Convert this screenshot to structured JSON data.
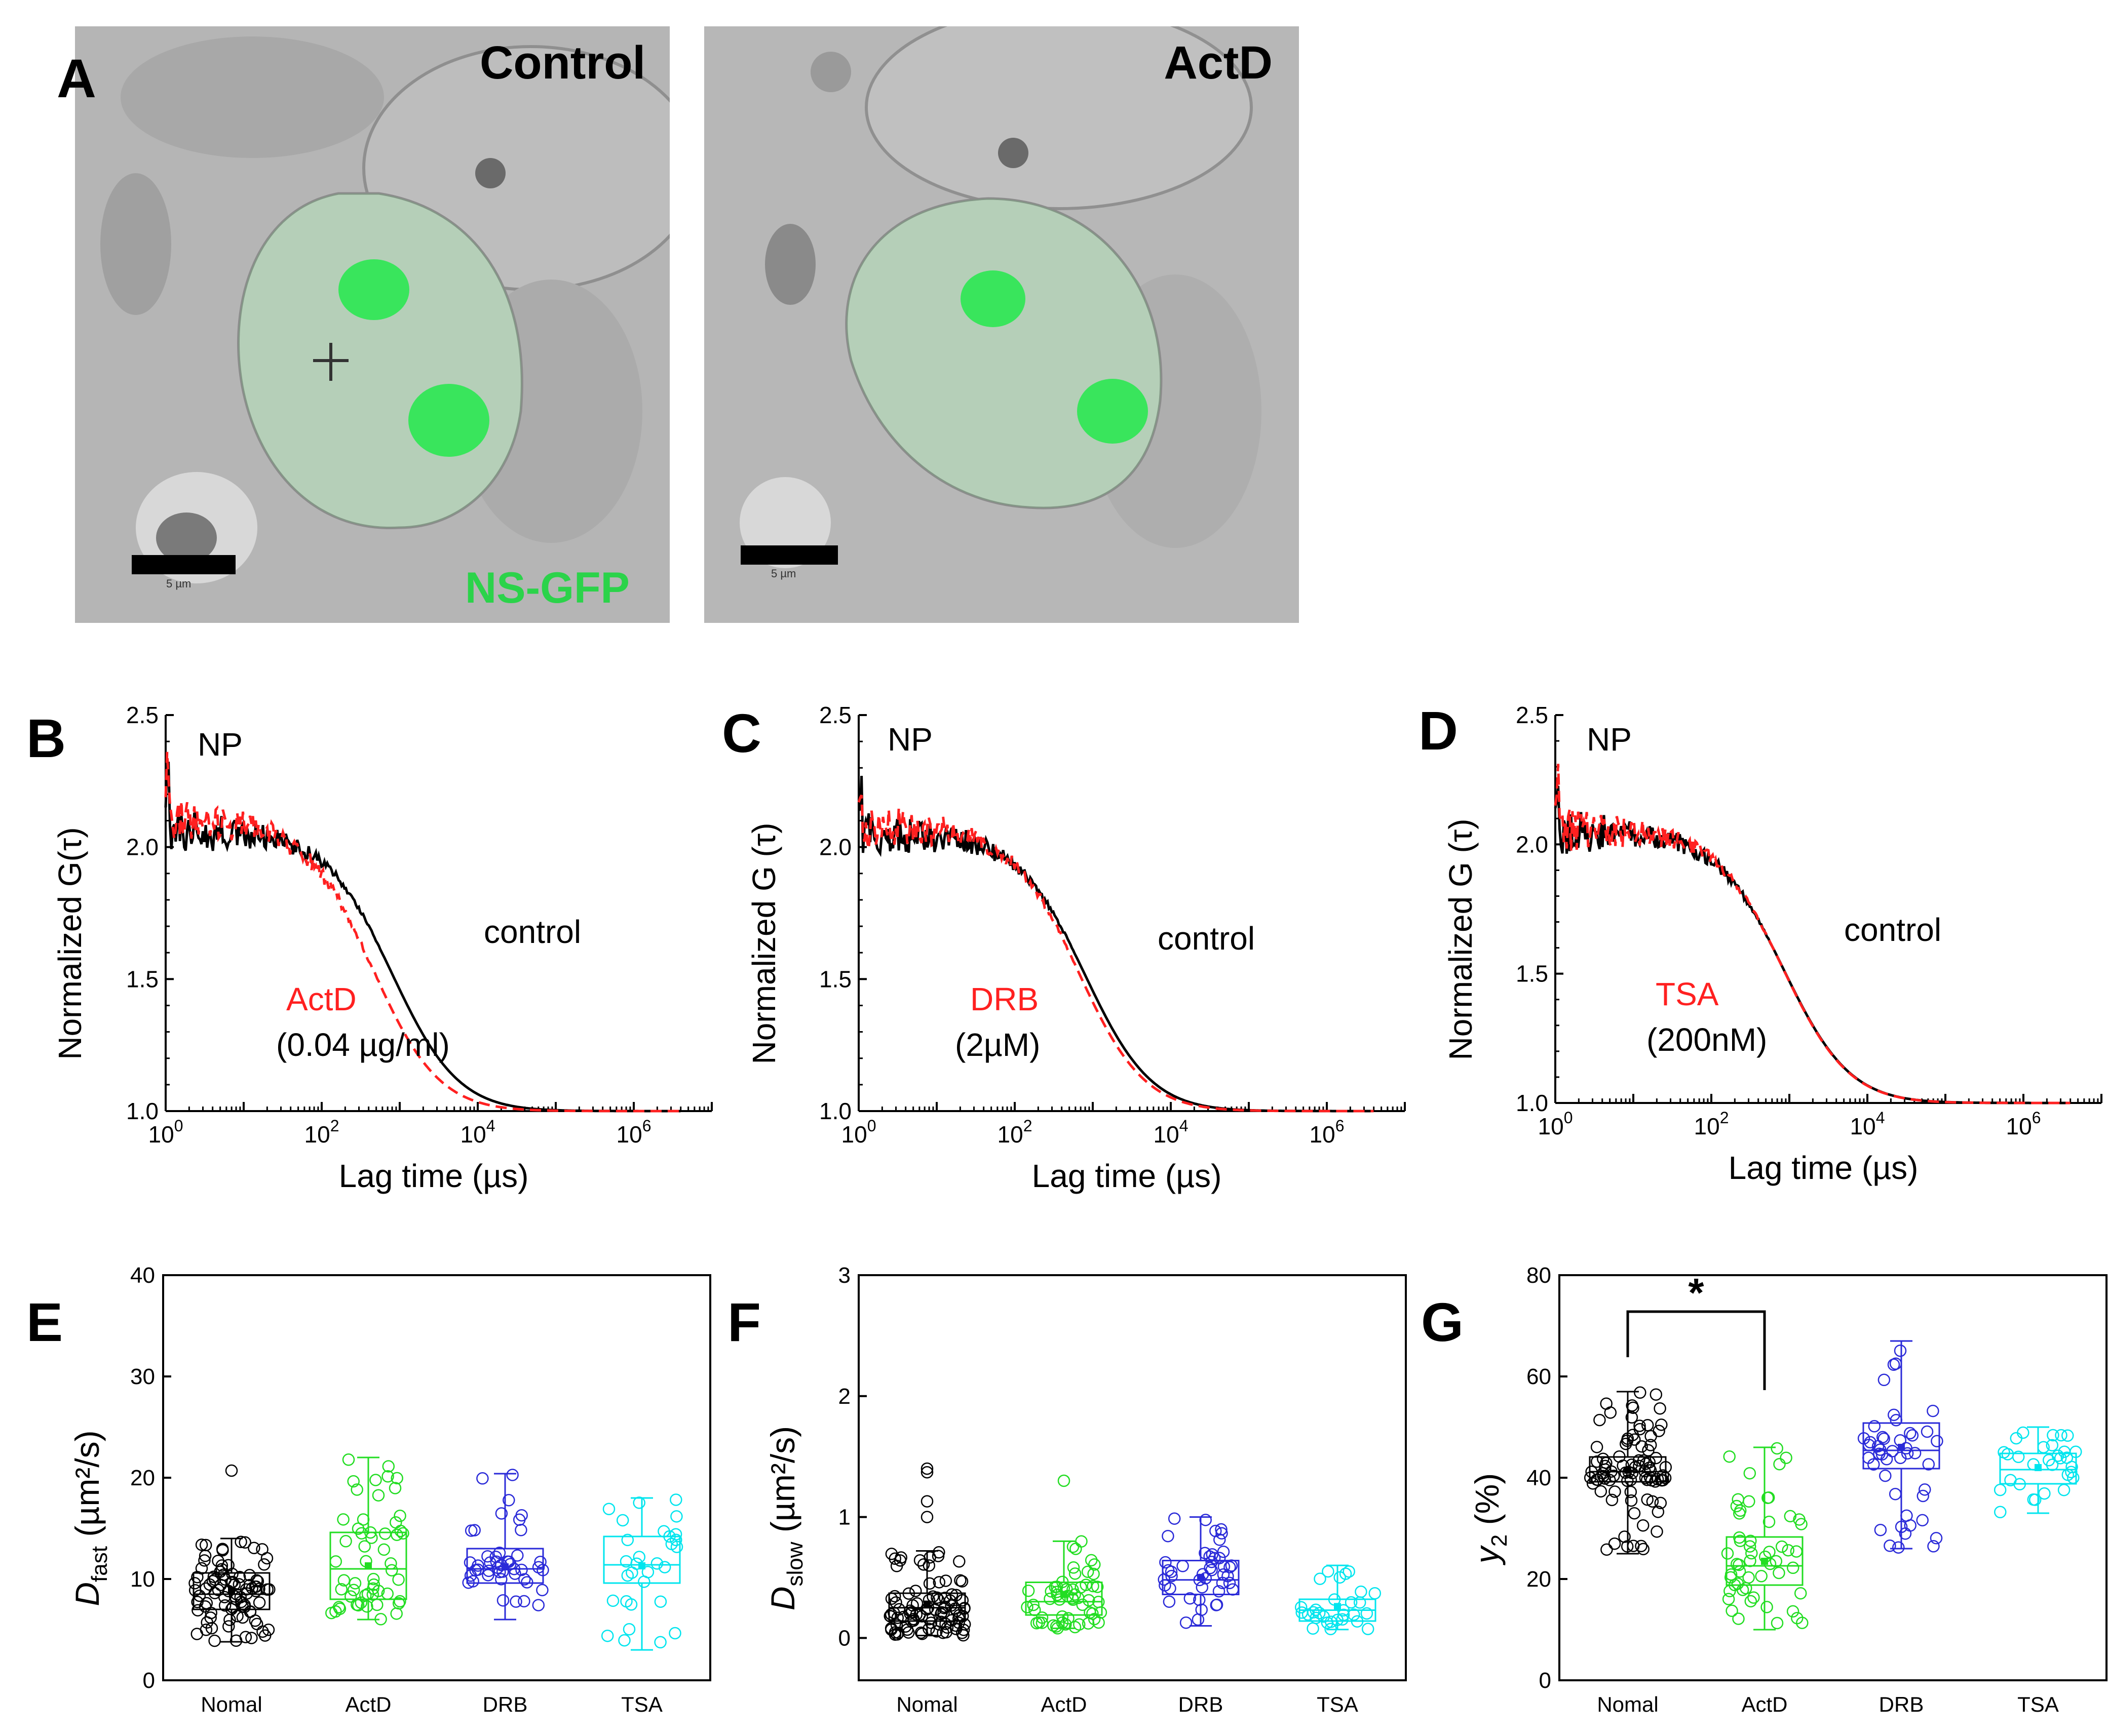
{
  "figure": {
    "panel_A": {
      "letter": "A",
      "left_image": {
        "label": "Control",
        "scale_text": "5 µm",
        "channel_label": "NS-GFP"
      },
      "right_image": {
        "label": "ActD",
        "scale_text": "5 µm"
      }
    },
    "colors": {
      "control": "#000000",
      "treatment": "#ff2020",
      "nomal": "#000000",
      "actd": "#22dd22",
      "drb": "#2a2ad8",
      "tsa": "#00e5ee",
      "gfp": "#2bd34a"
    }
  },
  "chart_data": [
    {
      "panel": "B",
      "type": "line",
      "title": "NP",
      "xlabel": "Lag time (µs)",
      "ylabel": "Normalized G(τ)",
      "xscale": "log",
      "xlim": [
        1,
        10000000
      ],
      "ylim": [
        1.0,
        2.5
      ],
      "xticks": [
        1,
        100,
        10000,
        1000000
      ],
      "xtick_labels": [
        "10^0",
        "10^2",
        "10^4",
        "10^6"
      ],
      "yticks": [
        1.0,
        1.5,
        2.0,
        2.5
      ],
      "ytick_labels": [
        "1.0",
        "1.5",
        "2.0",
        "2.5"
      ],
      "annotations": [
        {
          "text": "control",
          "color": "#000000"
        },
        {
          "text": "ActD",
          "color": "#ff2020"
        },
        {
          "text": "(0.04 µg/ml)",
          "color": "#000000"
        }
      ],
      "series": [
        {
          "name": "control",
          "style": "solid",
          "color": "#000000",
          "tau_D": 800,
          "G0": 2.06
        },
        {
          "name": "ActD",
          "style": "dashed",
          "color": "#ff2020",
          "tau_D": 450,
          "G0": 2.1
        }
      ]
    },
    {
      "panel": "C",
      "type": "line",
      "title": "NP",
      "xlabel": "Lag time (µs)",
      "ylabel": "Normalized G (τ)",
      "xscale": "log",
      "xlim": [
        1,
        10000000
      ],
      "ylim": [
        1.0,
        2.5
      ],
      "xticks": [
        1,
        100,
        10000,
        1000000
      ],
      "xtick_labels": [
        "10^0",
        "10^2",
        "10^4",
        "10^6"
      ],
      "yticks": [
        1.0,
        1.5,
        2.0,
        2.5
      ],
      "ytick_labels": [
        "1.0",
        "1.5",
        "2.0",
        "2.5"
      ],
      "annotations": [
        {
          "text": "control",
          "color": "#000000"
        },
        {
          "text": "DRB",
          "color": "#ff2020"
        },
        {
          "text": "(2µM)",
          "color": "#000000"
        }
      ],
      "series": [
        {
          "name": "control",
          "style": "solid",
          "color": "#000000",
          "tau_D": 800,
          "G0": 2.05
        },
        {
          "name": "DRB",
          "style": "dashed",
          "color": "#ff2020",
          "tau_D": 650,
          "G0": 2.08
        }
      ]
    },
    {
      "panel": "D",
      "type": "line",
      "title": "NP",
      "xlabel": "Lag time (µs)",
      "ylabel": "Normalized G (τ)",
      "xscale": "log",
      "xlim": [
        1,
        10000000
      ],
      "ylim": [
        1.0,
        2.5
      ],
      "xticks": [
        1,
        100,
        10000,
        1000000
      ],
      "xtick_labels": [
        "10^0",
        "10^2",
        "10^4",
        "10^6"
      ],
      "yticks": [
        1.0,
        1.5,
        2.0,
        2.5
      ],
      "ytick_labels": [
        "1.0",
        "1.5",
        "2.0",
        "2.5"
      ],
      "annotations": [
        {
          "text": "control",
          "color": "#000000"
        },
        {
          "text": "TSA",
          "color": "#ff2020"
        },
        {
          "text": "(200nM)",
          "color": "#000000"
        }
      ],
      "series": [
        {
          "name": "control",
          "style": "solid",
          "color": "#000000",
          "tau_D": 850,
          "G0": 2.05
        },
        {
          "name": "TSA",
          "style": "dashed",
          "color": "#ff2020",
          "tau_D": 830,
          "G0": 2.06
        }
      ]
    },
    {
      "panel": "E",
      "type": "box",
      "ylabel_main": "D",
      "ylabel_sub": "fast",
      "ylabel_unit": " (µm²/s)",
      "ylim": [
        0,
        40
      ],
      "yticks": [
        0,
        10,
        20,
        30,
        40
      ],
      "categories": [
        "Nomal",
        "ActD",
        "DRB",
        "TSA"
      ],
      "colors": [
        "#000000",
        "#22dd22",
        "#2a2ad8",
        "#00e5ee"
      ],
      "boxes": [
        {
          "q1": 7.0,
          "median": 8.5,
          "q3": 10.6,
          "mean": 8.8,
          "whisker_low": 3.8,
          "whisker_high": 14.0,
          "outliers": [
            20.7
          ],
          "n": 90
        },
        {
          "q1": 8.0,
          "median": 11.0,
          "q3": 14.6,
          "mean": 11.3,
          "whisker_low": 6.0,
          "whisker_high": 22.0,
          "outliers": [],
          "n": 55
        },
        {
          "q1": 9.6,
          "median": 11.0,
          "q3": 13.0,
          "mean": 11.2,
          "whisker_low": 6.0,
          "whisker_high": 20.4,
          "outliers": [],
          "n": 45
        },
        {
          "q1": 9.6,
          "median": 11.4,
          "q3": 14.2,
          "mean": 11.3,
          "whisker_low": 3.0,
          "whisker_high": 18.0,
          "outliers": [],
          "n": 30
        }
      ]
    },
    {
      "panel": "F",
      "type": "box",
      "ylabel_main": "D",
      "ylabel_sub": "slow",
      "ylabel_unit": " (µm²/s)",
      "ylim": [
        -0.35,
        3
      ],
      "yticks": [
        0,
        1,
        2,
        3
      ],
      "categories": [
        "Nomal",
        "ActD",
        "DRB",
        "TSA"
      ],
      "colors": [
        "#000000",
        "#22dd22",
        "#2a2ad8",
        "#00e5ee"
      ],
      "boxes": [
        {
          "q1": 0.14,
          "median": 0.25,
          "q3": 0.37,
          "mean": 0.28,
          "whisker_low": 0.02,
          "whisker_high": 0.72,
          "outliers": [
            1.0,
            1.13,
            1.37,
            1.4
          ],
          "n": 95
        },
        {
          "q1": 0.19,
          "median": 0.3,
          "q3": 0.46,
          "mean": 0.36,
          "whisker_low": 0.08,
          "whisker_high": 0.8,
          "outliers": [
            1.3
          ],
          "n": 55
        },
        {
          "q1": 0.36,
          "median": 0.48,
          "q3": 0.64,
          "mean": 0.5,
          "whisker_low": 0.1,
          "whisker_high": 1.0,
          "outliers": [],
          "n": 45
        },
        {
          "q1": 0.14,
          "median": 0.23,
          "q3": 0.32,
          "mean": 0.26,
          "whisker_low": 0.07,
          "whisker_high": 0.6,
          "outliers": [],
          "n": 30
        }
      ]
    },
    {
      "panel": "G",
      "type": "box",
      "ylabel_main": "y",
      "ylabel_sub": "2",
      "ylabel_unit": " (%)",
      "ylim": [
        0,
        80
      ],
      "yticks": [
        0,
        20,
        40,
        60,
        80
      ],
      "categories": [
        "Nomal",
        "ActD",
        "DRB",
        "TSA"
      ],
      "colors": [
        "#000000",
        "#22dd22",
        "#2a2ad8",
        "#00e5ee"
      ],
      "significance": {
        "from": 0,
        "to": 1,
        "label": "*"
      },
      "boxes": [
        {
          "q1": 39.2,
          "median": 41.2,
          "q3": 44.1,
          "mean": 41.5,
          "whisker_low": 25.0,
          "whisker_high": 57.0,
          "outliers": [],
          "n": 90
        },
        {
          "q1": 18.8,
          "median": 22.6,
          "q3": 28.3,
          "mean": 23.5,
          "whisker_low": 10.0,
          "whisker_high": 46.0,
          "outliers": [],
          "n": 55
        },
        {
          "q1": 41.8,
          "median": 45.4,
          "q3": 50.8,
          "mean": 46.0,
          "whisker_low": 26.0,
          "whisker_high": 67.0,
          "outliers": [],
          "n": 45
        },
        {
          "q1": 38.8,
          "median": 41.6,
          "q3": 44.8,
          "mean": 42.0,
          "whisker_low": 33.0,
          "whisker_high": 50.0,
          "outliers": [],
          "n": 30
        }
      ]
    }
  ]
}
